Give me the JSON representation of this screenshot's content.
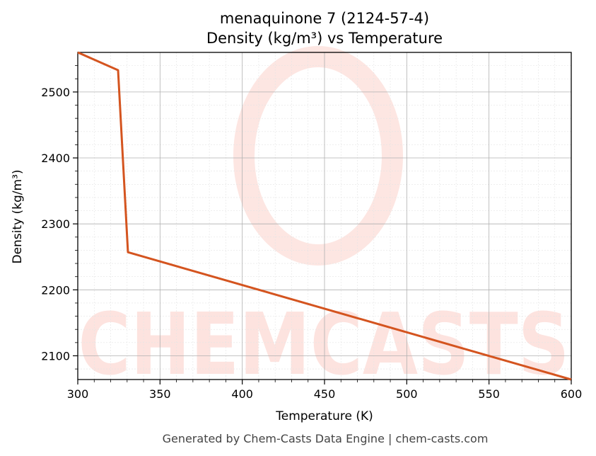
{
  "chart_data": {
    "type": "line",
    "title": "menaquinone 7 (2124-57-4)",
    "subtitle": "Density (kg/m³) vs Temperature",
    "xlabel": "Temperature (K)",
    "ylabel": "Density (kg/m³)",
    "xlim": [
      300,
      600
    ],
    "ylim": [
      2064,
      2560
    ],
    "xticks": [
      300,
      350,
      400,
      450,
      500,
      550,
      600
    ],
    "yticks": [
      2100,
      2200,
      2300,
      2400,
      2500
    ],
    "grid": true,
    "series": [
      {
        "color": "#d4541f",
        "x": [
          300,
          324.5,
          330.5,
          600
        ],
        "y": [
          2560,
          2533,
          2257,
          2064
        ]
      }
    ]
  },
  "watermark": {
    "text": "CHEMCASTS",
    "color": "#fde3df"
  },
  "footer": "Generated by Chem-Casts Data Engine | chem-casts.com"
}
